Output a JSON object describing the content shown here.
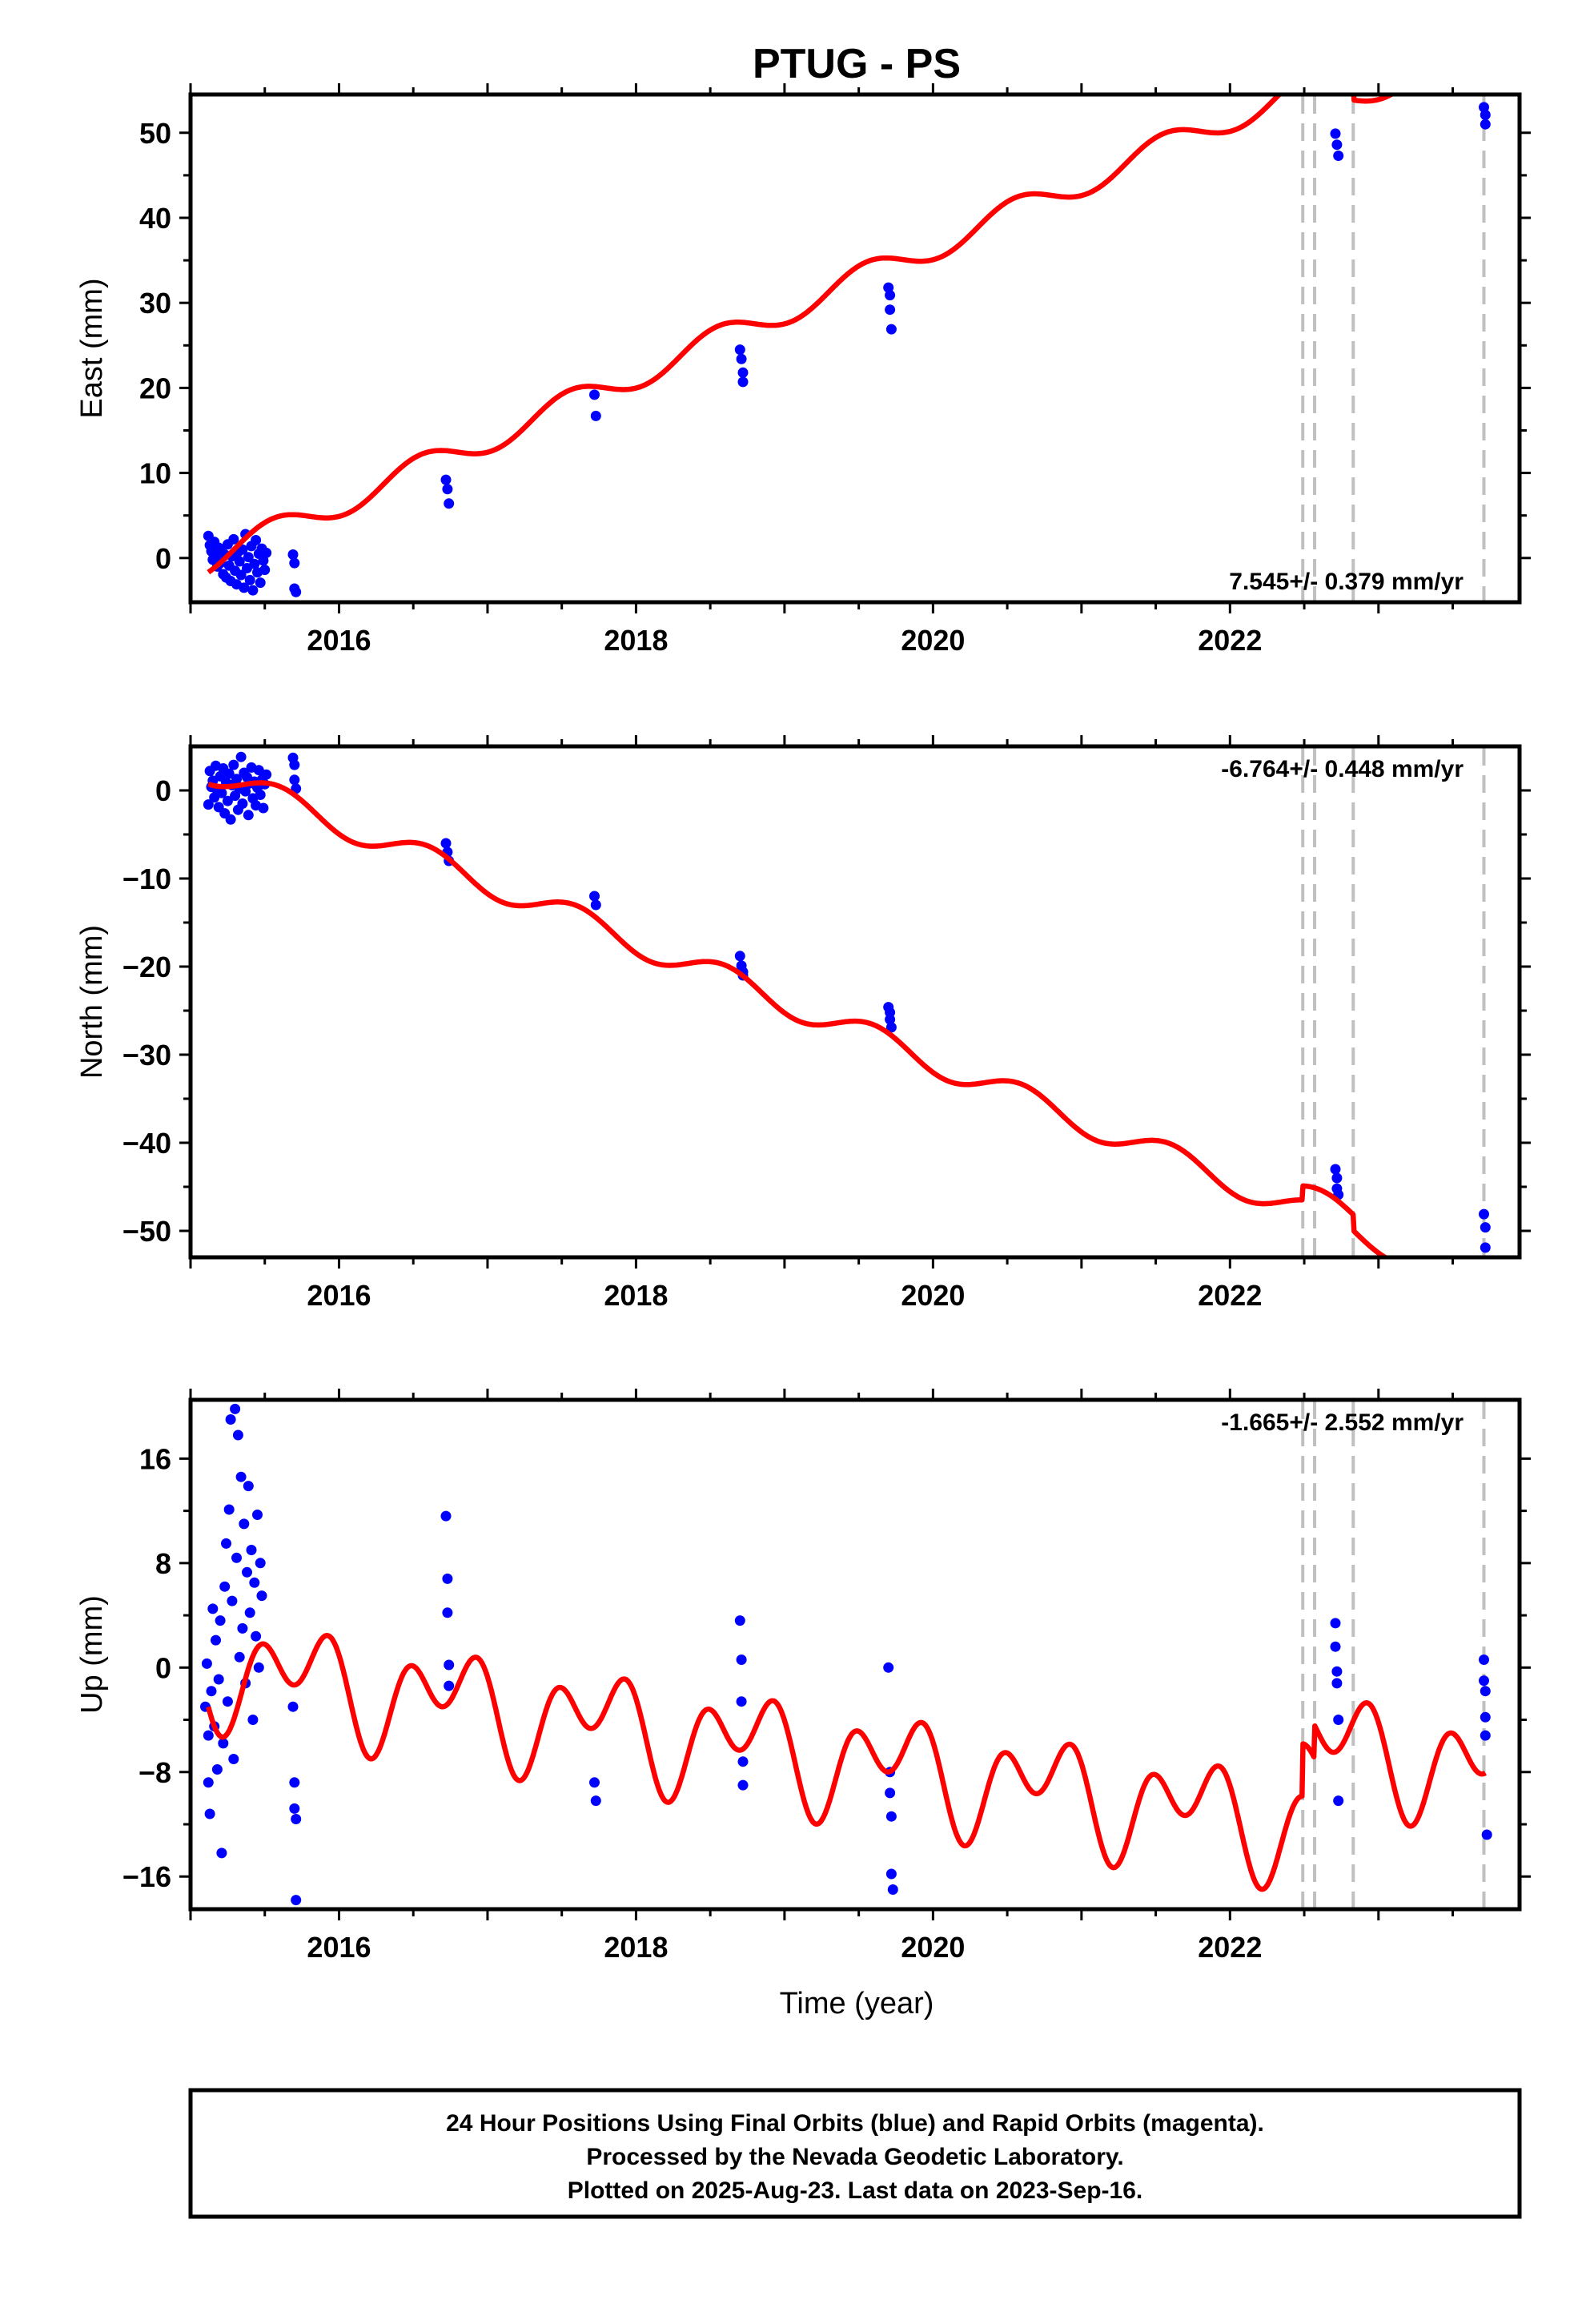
{
  "title": "PTUG - PS",
  "colors": {
    "final_orbits": "#0000ff",
    "model": "#ff0000",
    "event_lines": "#c0c0c0",
    "frame": "#000000"
  },
  "chart_data": [
    {
      "type": "scatter",
      "name": "east",
      "ylabel": "East (mm)",
      "xlabel": "",
      "xlim": [
        2015.0,
        2023.95
      ],
      "ylim": [
        -5.2,
        54.5
      ],
      "xticks": [
        "2016",
        "2018",
        "2020",
        "2022"
      ],
      "yticks": [
        "0",
        "10",
        "20",
        "30",
        "40",
        "50"
      ],
      "rate_text": "7.545+/- 0.379 mm/yr",
      "rate_position": "bottom-right",
      "model_linear": {
        "t0": 2015.15,
        "intercept": 0.0,
        "slope": 7.545
      },
      "model_seasonal": {
        "annual_amp": 1.6,
        "annual_phase": 0.3
      },
      "event_lines": [
        2022.49,
        2022.57,
        2022.83,
        2023.71
      ],
      "model_offsets": [
        {
          "t": 2022.49,
          "dy": -1.8
        },
        {
          "t": 2022.83,
          "dy": -2.0
        }
      ],
      "points": [
        {
          "x": 2015.12,
          "y": 2.6
        },
        {
          "x": 2015.13,
          "y": 1.5
        },
        {
          "x": 2015.14,
          "y": 0.8
        },
        {
          "x": 2015.15,
          "y": -0.2
        },
        {
          "x": 2015.16,
          "y": 1.9
        },
        {
          "x": 2015.17,
          "y": 0.3
        },
        {
          "x": 2015.18,
          "y": -1.0
        },
        {
          "x": 2015.19,
          "y": 1.2
        },
        {
          "x": 2015.2,
          "y": -0.6
        },
        {
          "x": 2015.21,
          "y": 0.9
        },
        {
          "x": 2015.22,
          "y": -1.9
        },
        {
          "x": 2015.23,
          "y": 0.4
        },
        {
          "x": 2015.24,
          "y": -2.3
        },
        {
          "x": 2015.25,
          "y": 1.6
        },
        {
          "x": 2015.26,
          "y": -0.9
        },
        {
          "x": 2015.27,
          "y": -2.7
        },
        {
          "x": 2015.28,
          "y": 0.2
        },
        {
          "x": 2015.29,
          "y": 2.2
        },
        {
          "x": 2015.3,
          "y": -1.5
        },
        {
          "x": 2015.31,
          "y": -3.1
        },
        {
          "x": 2015.32,
          "y": 0.7
        },
        {
          "x": 2015.33,
          "y": -0.4
        },
        {
          "x": 2015.34,
          "y": -2.0
        },
        {
          "x": 2015.35,
          "y": 1.0
        },
        {
          "x": 2015.36,
          "y": -3.5
        },
        {
          "x": 2015.37,
          "y": 2.8
        },
        {
          "x": 2015.38,
          "y": -1.2
        },
        {
          "x": 2015.39,
          "y": 0.1
        },
        {
          "x": 2015.4,
          "y": -2.6
        },
        {
          "x": 2015.41,
          "y": 1.4
        },
        {
          "x": 2015.42,
          "y": -3.8
        },
        {
          "x": 2015.43,
          "y": -0.7
        },
        {
          "x": 2015.44,
          "y": 2.1
        },
        {
          "x": 2015.45,
          "y": -1.7
        },
        {
          "x": 2015.46,
          "y": 0.5
        },
        {
          "x": 2015.47,
          "y": -2.9
        },
        {
          "x": 2015.48,
          "y": 1.1
        },
        {
          "x": 2015.49,
          "y": -0.3
        },
        {
          "x": 2015.5,
          "y": -1.4
        },
        {
          "x": 2015.51,
          "y": 0.6
        },
        {
          "x": 2015.69,
          "y": 0.4
        },
        {
          "x": 2015.7,
          "y": -0.6
        },
        {
          "x": 2015.7,
          "y": -3.6
        },
        {
          "x": 2015.71,
          "y": -4.0
        },
        {
          "x": 2016.72,
          "y": 9.2
        },
        {
          "x": 2016.73,
          "y": 8.1
        },
        {
          "x": 2016.74,
          "y": 6.4
        },
        {
          "x": 2017.72,
          "y": 19.2
        },
        {
          "x": 2017.73,
          "y": 16.7
        },
        {
          "x": 2018.7,
          "y": 24.5
        },
        {
          "x": 2018.71,
          "y": 23.4
        },
        {
          "x": 2018.72,
          "y": 21.8
        },
        {
          "x": 2018.72,
          "y": 20.7
        },
        {
          "x": 2019.7,
          "y": 31.8
        },
        {
          "x": 2019.71,
          "y": 30.9
        },
        {
          "x": 2019.71,
          "y": 29.2
        },
        {
          "x": 2019.72,
          "y": 26.9
        },
        {
          "x": 2022.71,
          "y": 49.9
        },
        {
          "x": 2022.72,
          "y": 48.6
        },
        {
          "x": 2022.73,
          "y": 47.3
        },
        {
          "x": 2023.71,
          "y": 53.0
        },
        {
          "x": 2023.72,
          "y": 52.1
        },
        {
          "x": 2023.72,
          "y": 51.0
        }
      ]
    },
    {
      "type": "scatter",
      "name": "north",
      "ylabel": "North (mm)",
      "xlabel": "",
      "xlim": [
        2015.0,
        2023.95
      ],
      "ylim": [
        -53.0,
        5.0
      ],
      "xticks": [
        "2016",
        "2018",
        "2020",
        "2022"
      ],
      "yticks": [
        "0",
        "−10",
        "−20",
        "−30",
        "−40",
        "−50"
      ],
      "rate_text": "-6.764+/- 0.448 mm/yr",
      "rate_position": "top-right",
      "model_linear": {
        "t0": 2015.15,
        "intercept": 2.0,
        "slope": -6.764
      },
      "model_seasonal": {
        "annual_amp": 1.5,
        "annual_phase": 0.35
      },
      "event_lines": [
        2022.49,
        2022.57,
        2022.83,
        2023.71
      ],
      "model_offsets": [
        {
          "t": 2022.49,
          "dy": 1.6
        },
        {
          "t": 2022.83,
          "dy": -1.8
        }
      ],
      "points": [
        {
          "x": 2015.12,
          "y": -1.6
        },
        {
          "x": 2015.13,
          "y": 2.2
        },
        {
          "x": 2015.14,
          "y": 0.4
        },
        {
          "x": 2015.15,
          "y": 1.1
        },
        {
          "x": 2015.16,
          "y": -0.8
        },
        {
          "x": 2015.17,
          "y": 2.8
        },
        {
          "x": 2015.18,
          "y": 0.0
        },
        {
          "x": 2015.19,
          "y": -1.9
        },
        {
          "x": 2015.2,
          "y": 1.6
        },
        {
          "x": 2015.21,
          "y": -0.3
        },
        {
          "x": 2015.22,
          "y": 2.5
        },
        {
          "x": 2015.23,
          "y": -2.6
        },
        {
          "x": 2015.24,
          "y": 0.9
        },
        {
          "x": 2015.25,
          "y": -1.2
        },
        {
          "x": 2015.26,
          "y": 1.9
        },
        {
          "x": 2015.27,
          "y": -3.3
        },
        {
          "x": 2015.28,
          "y": 0.6
        },
        {
          "x": 2015.29,
          "y": 2.9
        },
        {
          "x": 2015.3,
          "y": -0.6
        },
        {
          "x": 2015.31,
          "y": 1.3
        },
        {
          "x": 2015.32,
          "y": -2.2
        },
        {
          "x": 2015.33,
          "y": 0.2
        },
        {
          "x": 2015.34,
          "y": 3.8
        },
        {
          "x": 2015.35,
          "y": -1.5
        },
        {
          "x": 2015.36,
          "y": 2.0
        },
        {
          "x": 2015.37,
          "y": -0.1
        },
        {
          "x": 2015.38,
          "y": 1.5
        },
        {
          "x": 2015.39,
          "y": -2.8
        },
        {
          "x": 2015.4,
          "y": 0.8
        },
        {
          "x": 2015.41,
          "y": 2.6
        },
        {
          "x": 2015.42,
          "y": -0.9
        },
        {
          "x": 2015.43,
          "y": 1.0
        },
        {
          "x": 2015.44,
          "y": -1.7
        },
        {
          "x": 2015.45,
          "y": 0.3
        },
        {
          "x": 2015.46,
          "y": 2.3
        },
        {
          "x": 2015.47,
          "y": -0.5
        },
        {
          "x": 2015.48,
          "y": 1.2
        },
        {
          "x": 2015.49,
          "y": -2.0
        },
        {
          "x": 2015.5,
          "y": 0.7
        },
        {
          "x": 2015.51,
          "y": 1.8
        },
        {
          "x": 2015.69,
          "y": 3.7
        },
        {
          "x": 2015.7,
          "y": 2.9
        },
        {
          "x": 2015.7,
          "y": 1.2
        },
        {
          "x": 2015.71,
          "y": 0.2
        },
        {
          "x": 2016.72,
          "y": -6.0
        },
        {
          "x": 2016.73,
          "y": -7.0
        },
        {
          "x": 2016.74,
          "y": -8.0
        },
        {
          "x": 2017.72,
          "y": -12.0
        },
        {
          "x": 2017.73,
          "y": -13.0
        },
        {
          "x": 2018.7,
          "y": -18.8
        },
        {
          "x": 2018.71,
          "y": -19.9
        },
        {
          "x": 2018.72,
          "y": -20.6
        },
        {
          "x": 2018.72,
          "y": -21.0
        },
        {
          "x": 2019.7,
          "y": -24.6
        },
        {
          "x": 2019.71,
          "y": -25.2
        },
        {
          "x": 2019.71,
          "y": -26.0
        },
        {
          "x": 2019.72,
          "y": -26.9
        },
        {
          "x": 2022.71,
          "y": -43.0
        },
        {
          "x": 2022.72,
          "y": -44.0
        },
        {
          "x": 2022.72,
          "y": -45.2
        },
        {
          "x": 2022.73,
          "y": -45.9
        },
        {
          "x": 2023.71,
          "y": -48.1
        },
        {
          "x": 2023.72,
          "y": -49.6
        },
        {
          "x": 2023.72,
          "y": -51.9
        }
      ]
    },
    {
      "type": "scatter",
      "name": "up",
      "ylabel": "Up (mm)",
      "xlabel": "Time (year)",
      "xlim": [
        2015.0,
        2023.95
      ],
      "ylim": [
        -18.5,
        20.5
      ],
      "xticks": [
        "2016",
        "2018",
        "2020",
        "2022"
      ],
      "yticks": [
        "16",
        "8",
        "0",
        "−8",
        "−16"
      ],
      "rate_text": "-1.665+/- 2.552 mm/yr",
      "rate_position": "top-right",
      "model_linear": {
        "t0": 2015.15,
        "intercept": 0.0,
        "slope": -1.665
      },
      "model_seasonal": {
        "annual_amp": 2.5,
        "annual_phase": 0.5,
        "semiannual_amp": 2.8,
        "semiannual_phase": 0.33
      },
      "event_lines": [
        2022.49,
        2022.57,
        2022.83,
        2023.71
      ],
      "model_offsets": [
        {
          "t": 2022.49,
          "dy": 4.0
        },
        {
          "t": 2022.57,
          "dy": 2.5
        }
      ],
      "points": [
        {
          "x": 2015.1,
          "y": -3.0
        },
        {
          "x": 2015.11,
          "y": 0.3
        },
        {
          "x": 2015.12,
          "y": -5.2
        },
        {
          "x": 2015.12,
          "y": -8.8
        },
        {
          "x": 2015.13,
          "y": -11.2
        },
        {
          "x": 2015.14,
          "y": -1.8
        },
        {
          "x": 2015.15,
          "y": 4.5
        },
        {
          "x": 2015.16,
          "y": -4.5
        },
        {
          "x": 2015.17,
          "y": 2.1
        },
        {
          "x": 2015.18,
          "y": -7.8
        },
        {
          "x": 2015.19,
          "y": -0.9
        },
        {
          "x": 2015.2,
          "y": 3.6
        },
        {
          "x": 2015.21,
          "y": -14.2
        },
        {
          "x": 2015.22,
          "y": -5.8
        },
        {
          "x": 2015.23,
          "y": 6.2
        },
        {
          "x": 2015.24,
          "y": 9.5
        },
        {
          "x": 2015.25,
          "y": -2.6
        },
        {
          "x": 2015.26,
          "y": 12.1
        },
        {
          "x": 2015.27,
          "y": 19.0
        },
        {
          "x": 2015.28,
          "y": 5.1
        },
        {
          "x": 2015.29,
          "y": -7.0
        },
        {
          "x": 2015.3,
          "y": 19.8
        },
        {
          "x": 2015.31,
          "y": 8.4
        },
        {
          "x": 2015.32,
          "y": 17.8
        },
        {
          "x": 2015.33,
          "y": 0.8
        },
        {
          "x": 2015.34,
          "y": 14.6
        },
        {
          "x": 2015.35,
          "y": 3.0
        },
        {
          "x": 2015.36,
          "y": 11.0
        },
        {
          "x": 2015.37,
          "y": -1.2
        },
        {
          "x": 2015.38,
          "y": 7.3
        },
        {
          "x": 2015.39,
          "y": 13.9
        },
        {
          "x": 2015.4,
          "y": 4.2
        },
        {
          "x": 2015.41,
          "y": 9.0
        },
        {
          "x": 2015.42,
          "y": -4.0
        },
        {
          "x": 2015.43,
          "y": 6.5
        },
        {
          "x": 2015.44,
          "y": 2.4
        },
        {
          "x": 2015.45,
          "y": 11.7
        },
        {
          "x": 2015.46,
          "y": 0.0
        },
        {
          "x": 2015.47,
          "y": 8.0
        },
        {
          "x": 2015.48,
          "y": 5.5
        },
        {
          "x": 2015.69,
          "y": -3.0
        },
        {
          "x": 2015.7,
          "y": -8.8
        },
        {
          "x": 2015.7,
          "y": -10.8
        },
        {
          "x": 2015.71,
          "y": -11.6
        },
        {
          "x": 2015.71,
          "y": -17.8
        },
        {
          "x": 2016.72,
          "y": 11.6
        },
        {
          "x": 2016.73,
          "y": 6.8
        },
        {
          "x": 2016.73,
          "y": 4.2
        },
        {
          "x": 2016.74,
          "y": 0.2
        },
        {
          "x": 2016.74,
          "y": -1.4
        },
        {
          "x": 2017.72,
          "y": -8.8
        },
        {
          "x": 2017.73,
          "y": -10.2
        },
        {
          "x": 2018.7,
          "y": 3.6
        },
        {
          "x": 2018.71,
          "y": 0.6
        },
        {
          "x": 2018.71,
          "y": -2.6
        },
        {
          "x": 2018.72,
          "y": -7.2
        },
        {
          "x": 2018.72,
          "y": -9.0
        },
        {
          "x": 2019.7,
          "y": 0.0
        },
        {
          "x": 2019.71,
          "y": -8.0
        },
        {
          "x": 2019.71,
          "y": -9.6
        },
        {
          "x": 2019.72,
          "y": -11.4
        },
        {
          "x": 2019.72,
          "y": -15.8
        },
        {
          "x": 2019.73,
          "y": -17.0
        },
        {
          "x": 2022.71,
          "y": 3.4
        },
        {
          "x": 2022.71,
          "y": 1.6
        },
        {
          "x": 2022.72,
          "y": -0.3
        },
        {
          "x": 2022.72,
          "y": -1.2
        },
        {
          "x": 2022.73,
          "y": -4.0
        },
        {
          "x": 2022.73,
          "y": -10.2
        },
        {
          "x": 2023.71,
          "y": 0.6
        },
        {
          "x": 2023.71,
          "y": -1.0
        },
        {
          "x": 2023.72,
          "y": -1.8
        },
        {
          "x": 2023.72,
          "y": -3.8
        },
        {
          "x": 2023.72,
          "y": -5.2
        },
        {
          "x": 2023.73,
          "y": -12.8
        }
      ]
    }
  ],
  "footer": {
    "line1": "24 Hour Positions Using Final Orbits (blue) and Rapid Orbits (magenta).",
    "line2": "Processed by the Nevada Geodetic Laboratory.",
    "line3": "Plotted on 2025-Aug-23. Last data on 2023-Sep-16."
  }
}
